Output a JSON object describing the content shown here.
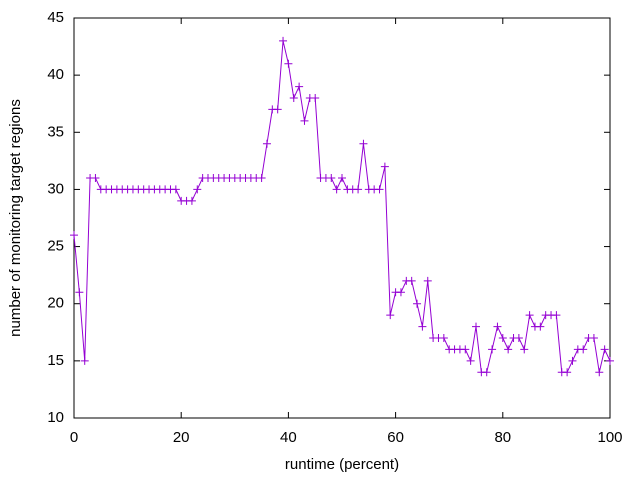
{
  "chart_data": {
    "type": "line",
    "x_label": "runtime (percent)",
    "y_label": "number of monitoring target regions",
    "x": [
      0,
      1,
      2,
      3,
      4,
      5,
      6,
      7,
      8,
      9,
      10,
      11,
      12,
      13,
      14,
      15,
      16,
      17,
      18,
      19,
      20,
      21,
      22,
      23,
      24,
      25,
      26,
      27,
      28,
      29,
      30,
      31,
      32,
      33,
      34,
      35,
      36,
      37,
      38,
      39,
      40,
      41,
      42,
      43,
      44,
      45,
      46,
      47,
      48,
      49,
      50,
      51,
      52,
      53,
      54,
      55,
      56,
      57,
      58,
      59,
      60,
      61,
      62,
      63,
      64,
      65,
      66,
      67,
      68,
      69,
      70,
      71,
      72,
      73,
      74,
      75,
      76,
      77,
      78,
      79,
      80,
      81,
      82,
      83,
      84,
      85,
      86,
      87,
      88,
      89,
      90,
      91,
      92,
      93,
      94,
      95,
      96,
      97,
      98,
      99,
      100
    ],
    "values": [
      26,
      21,
      15,
      31,
      31,
      30,
      30,
      30,
      30,
      30,
      30,
      30,
      30,
      30,
      30,
      30,
      30,
      30,
      30,
      30,
      29,
      29,
      29,
      30,
      31,
      31,
      31,
      31,
      31,
      31,
      31,
      31,
      31,
      31,
      31,
      31,
      34,
      37,
      37,
      43,
      41,
      38,
      39,
      36,
      38,
      38,
      31,
      31,
      31,
      30,
      31,
      30,
      30,
      30,
      34,
      30,
      30,
      30,
      32,
      19,
      21,
      21,
      22,
      22,
      20,
      18,
      22,
      17,
      17,
      17,
      16,
      16,
      16,
      16,
      15,
      18,
      14,
      14,
      16,
      18,
      17,
      16,
      17,
      17,
      16,
      19,
      18,
      18,
      19,
      19,
      19,
      14,
      14,
      15,
      16,
      16,
      17,
      17,
      14,
      16,
      15
    ],
    "color": "#9400d3",
    "xlim": [
      0,
      100
    ],
    "xticks": [
      0,
      20,
      40,
      60,
      80,
      100
    ],
    "ylim": [
      10,
      45
    ],
    "yticks": [
      10,
      15,
      20,
      25,
      30,
      35,
      40,
      45
    ],
    "grid": false
  }
}
